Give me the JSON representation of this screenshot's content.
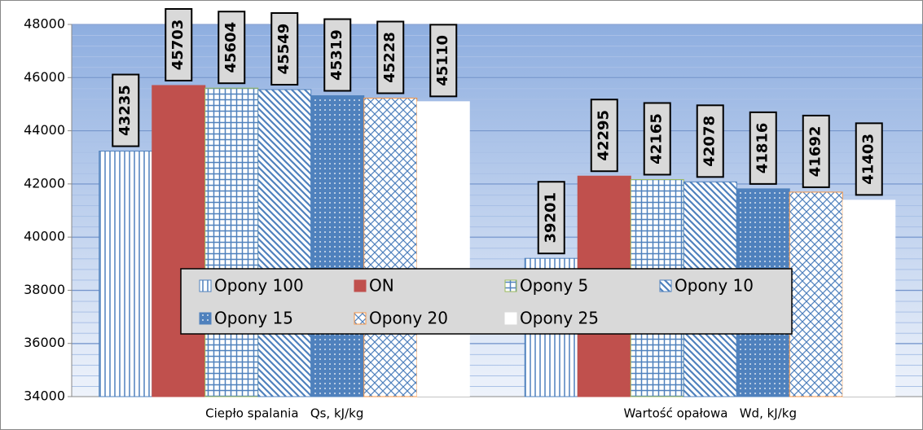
{
  "chart_data": {
    "type": "bar",
    "categories": [
      "Ciepło spalania   Qs, kJ/kg",
      "Wartość opałowa   Wd, kJ/kg"
    ],
    "series": [
      {
        "name": "Opony 100",
        "color": "#4f81bd",
        "values": [
          43235,
          39201
        ]
      },
      {
        "name": "ON",
        "color": "#c0504d",
        "values": [
          45703,
          42295
        ]
      },
      {
        "name": "Opony 5",
        "color": "#9bbb59",
        "values": [
          45604,
          42165
        ]
      },
      {
        "name": "Opony 10",
        "color": "#4f81bd",
        "values": [
          45549,
          42078
        ]
      },
      {
        "name": "Opony 15",
        "color": "#4f81bd",
        "values": [
          45319,
          41816
        ]
      },
      {
        "name": "Opony 20",
        "color": "#f79646",
        "values": [
          45228,
          41692
        ]
      },
      {
        "name": "Opony 25",
        "color": "#ffffff",
        "values": [
          45110,
          41403
        ]
      }
    ],
    "ylim": [
      34000,
      48000
    ],
    "yticks": [
      34000,
      36000,
      38000,
      40000,
      42000,
      44000,
      46000,
      48000
    ],
    "grid": true
  }
}
